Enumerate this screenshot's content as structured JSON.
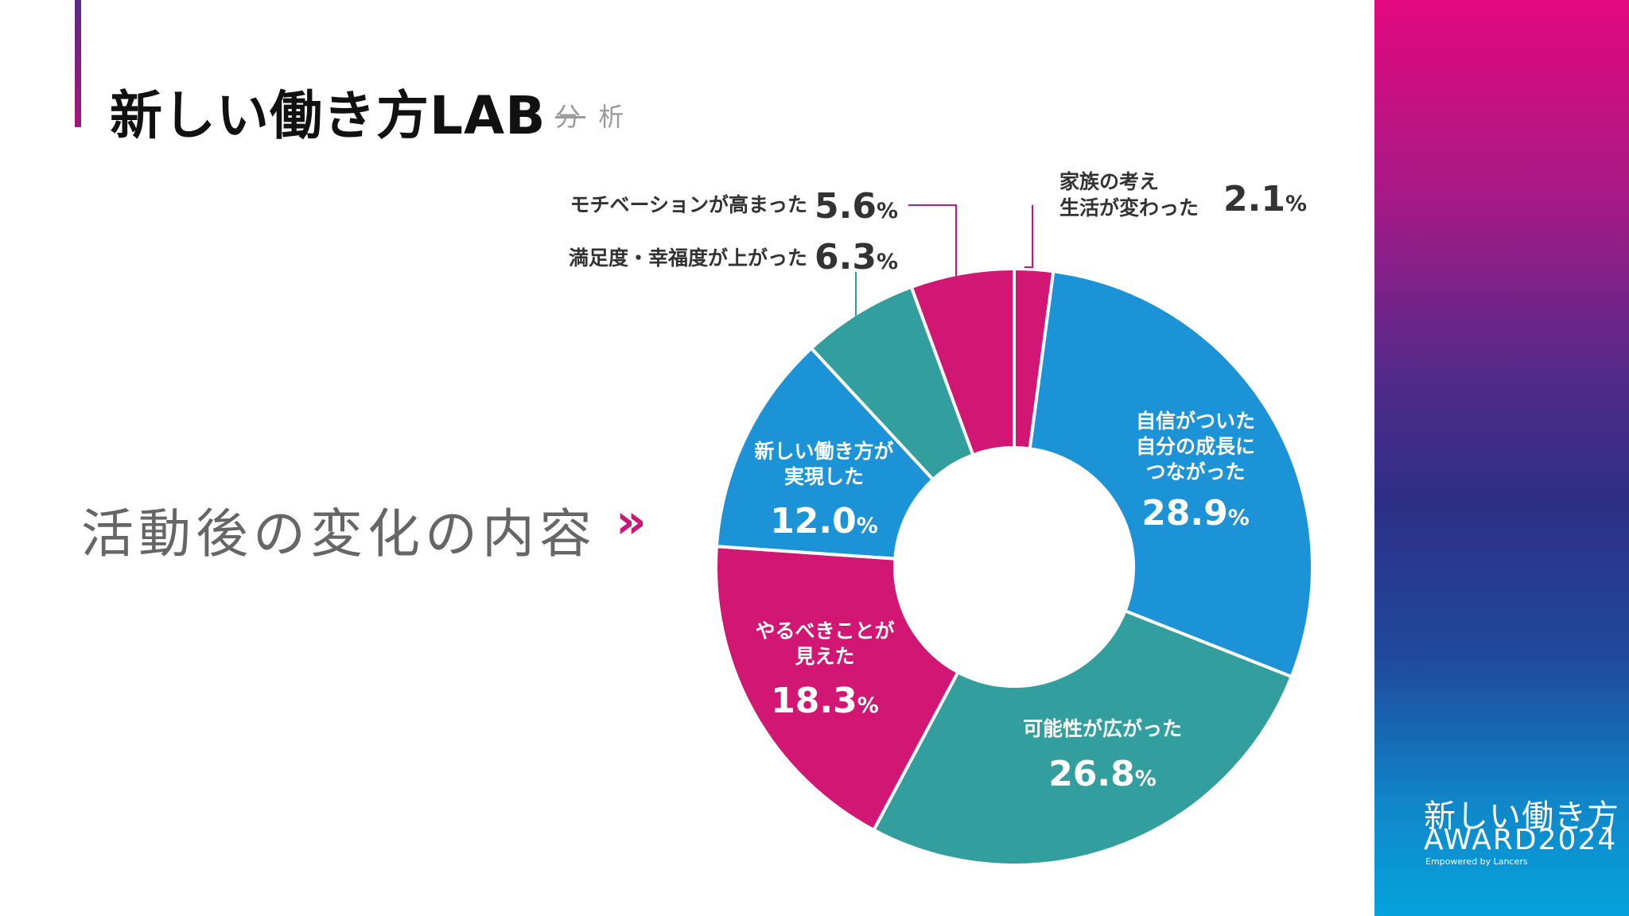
{
  "header": {
    "title": "新しい働き方LAB",
    "subtitle_struck": "分",
    "subtitle_rest": "析"
  },
  "main_heading": "活動後の変化の内容",
  "chevron_icon": "double-chevron-right-icon",
  "brand": {
    "line1": "新しい働き方",
    "line2": "AWARD2024",
    "line3": "Empowered by Lancers"
  },
  "colors": {
    "blue": "#1b93d6",
    "teal": "#339e9e",
    "magenta": "#d21674",
    "leader": "#c8177a"
  },
  "chart_data": {
    "type": "donut",
    "title": "活動後の変化の内容",
    "unit": "%",
    "slices": [
      {
        "label_lines": [
          "家族の考え",
          "生活が変わった"
        ],
        "value": 2.1,
        "value_text": "2.1",
        "color": "#d21674",
        "label_position": "outside-top-right"
      },
      {
        "label_lines": [
          "自信がついた",
          "自分の成長に",
          "つながった"
        ],
        "value": 28.9,
        "value_text": "28.9",
        "color": "#1b93d6",
        "label_position": "inside"
      },
      {
        "label_lines": [
          "可能性が広がった"
        ],
        "value": 26.8,
        "value_text": "26.8",
        "color": "#339e9e",
        "label_position": "inside"
      },
      {
        "label_lines": [
          "やるべきことが",
          "見えた"
        ],
        "value": 18.3,
        "value_text": "18.3",
        "color": "#d21674",
        "label_position": "inside"
      },
      {
        "label_lines": [
          "新しい働き方が",
          "実現した"
        ],
        "value": 12.0,
        "value_text": "12.0",
        "color": "#1b93d6",
        "label_position": "inside"
      },
      {
        "label_lines": [
          "満足度・幸福度が上がった"
        ],
        "value": 6.3,
        "value_text": "6.3",
        "color": "#339e9e",
        "label_position": "outside-top-left"
      },
      {
        "label_lines": [
          "モチベーションが高まった"
        ],
        "value": 5.6,
        "value_text": "5.6",
        "color": "#d21674",
        "label_position": "outside-top-left"
      }
    ]
  }
}
